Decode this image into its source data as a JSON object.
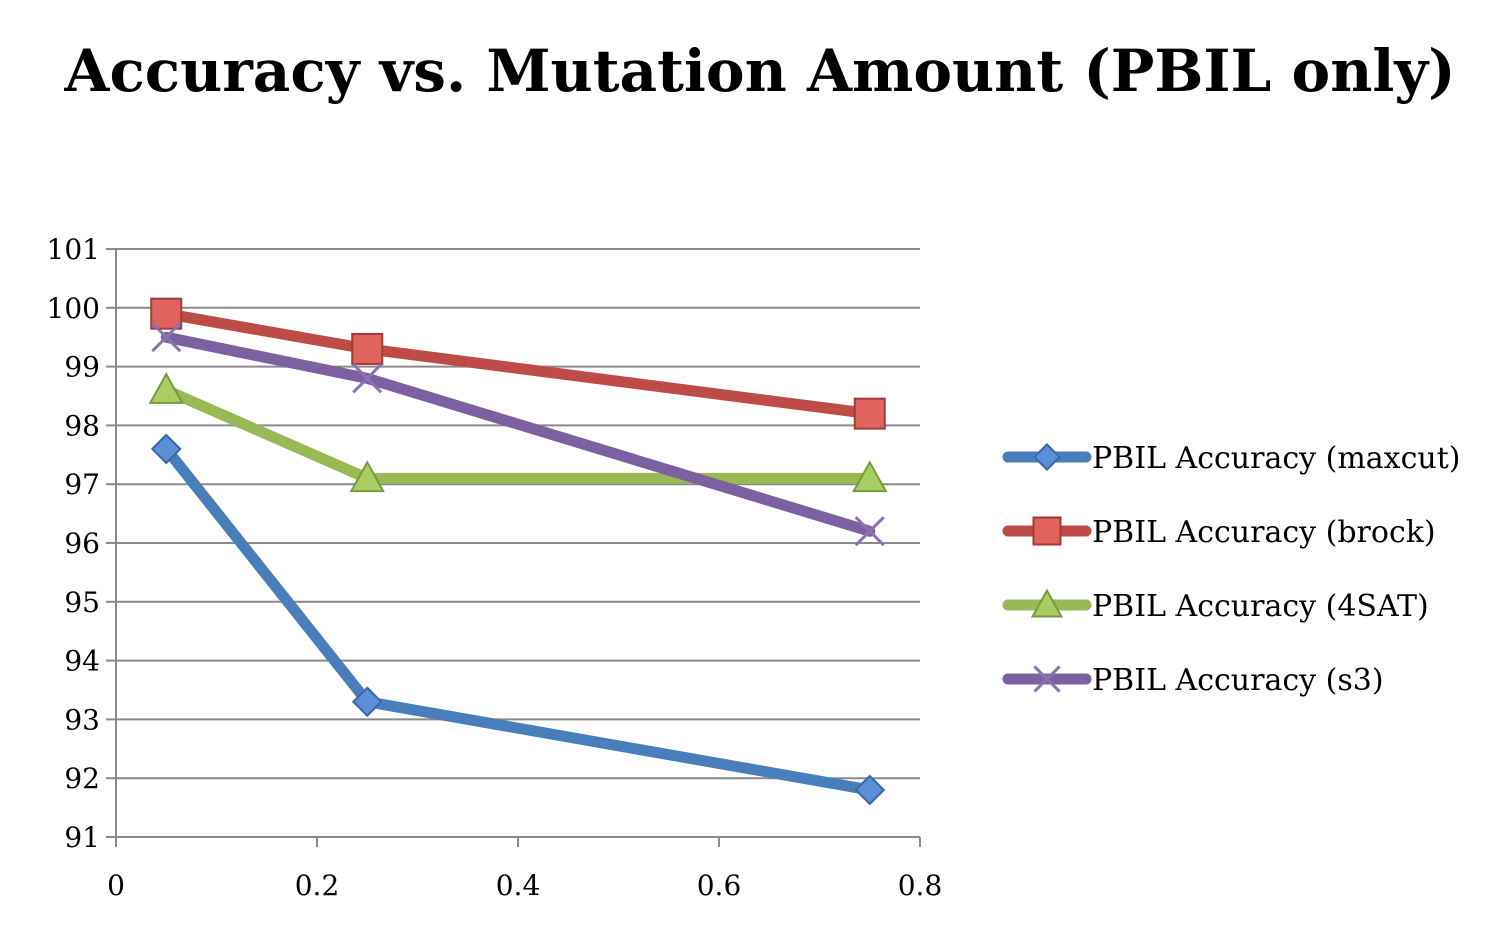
{
  "chart_data": {
    "type": "line",
    "title": "Accuracy vs. Mutation Amount (PBIL only)",
    "xlabel": "",
    "ylabel": "",
    "xlim": [
      0,
      0.8
    ],
    "ylim": [
      91,
      101
    ],
    "x_ticks": [
      "0",
      "0.2",
      "0.4",
      "0.6",
      "0.8"
    ],
    "y_ticks": [
      "91",
      "92",
      "93",
      "94",
      "95",
      "96",
      "97",
      "98",
      "99",
      "100",
      "101"
    ],
    "grid": "horizontal",
    "legend_position": "right",
    "series": [
      {
        "name": "PBIL Accuracy (maxcut)",
        "marker": "diamond",
        "color": "#4a7ebb",
        "x": [
          0.05,
          0.25,
          0.75
        ],
        "y": [
          97.6,
          93.3,
          91.8
        ]
      },
      {
        "name": "PBIL Accuracy (brock)",
        "marker": "square",
        "color": "#be4b48",
        "x": [
          0.05,
          0.25,
          0.75
        ],
        "y": [
          99.9,
          99.3,
          98.2
        ]
      },
      {
        "name": "PBIL Accuracy (4SAT)",
        "marker": "triangle",
        "color": "#98b954",
        "x": [
          0.05,
          0.25,
          0.75
        ],
        "y": [
          98.6,
          97.1,
          97.1
        ]
      },
      {
        "name": "PBIL Accuracy (s3)",
        "marker": "x",
        "color": "#7d60a0",
        "x": [
          0.05,
          0.25,
          0.75
        ],
        "y": [
          99.5,
          98.8,
          96.2
        ]
      }
    ]
  }
}
